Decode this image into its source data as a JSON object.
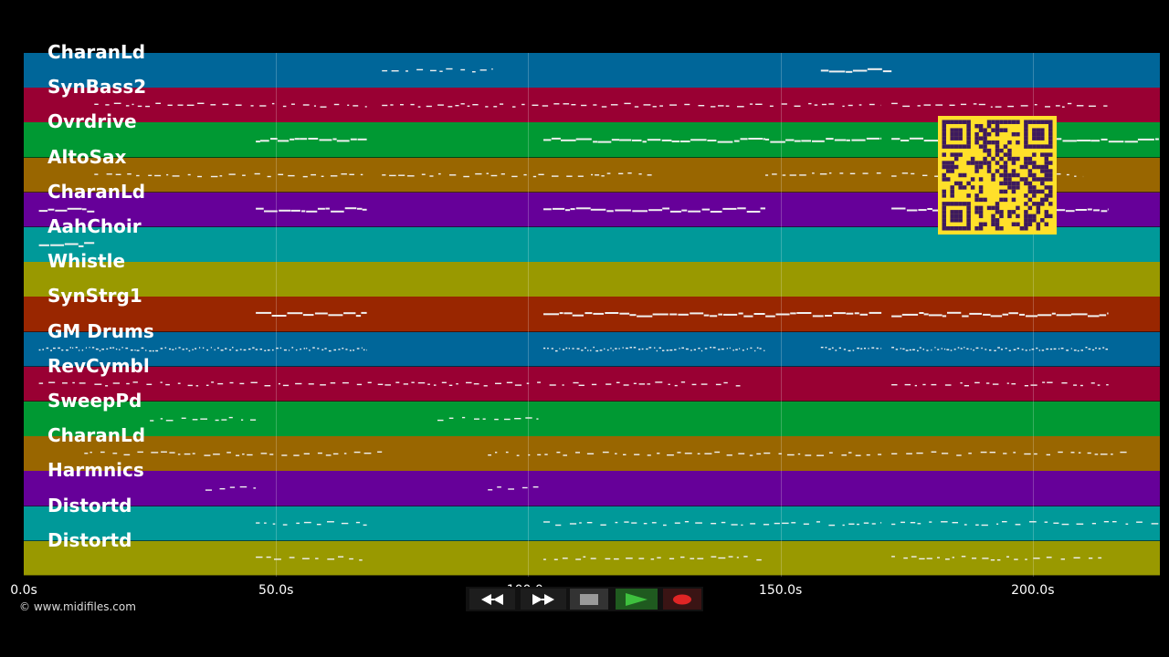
{
  "tracks": [
    {
      "name": "CharanLd",
      "color": "#006699"
    },
    {
      "name": "SynBass2",
      "color": "#990033"
    },
    {
      "name": "Ovrdrive",
      "color": "#009933"
    },
    {
      "name": "AltoSax",
      "color": "#996600"
    },
    {
      "name": "CharanLd",
      "color": "#660099"
    },
    {
      "name": "AahChoir",
      "color": "#009999"
    },
    {
      "name": "Whistle",
      "color": "#999900"
    },
    {
      "name": "SynStrg1",
      "color": "#992600"
    },
    {
      "name": "GM Drums",
      "color": "#006699"
    },
    {
      "name": "RevCymbl",
      "color": "#990033"
    },
    {
      "name": "SweepPd",
      "color": "#009933"
    },
    {
      "name": "CharanLd",
      "color": "#996600"
    },
    {
      "name": "Harmnics",
      "color": "#660099"
    },
    {
      "name": "Distortd",
      "color": "#009999"
    },
    {
      "name": "Distortd",
      "color": "#999900"
    }
  ],
  "timeline": {
    "max_seconds": 225,
    "ticks": [
      {
        "label": "0.0s",
        "value": 0
      },
      {
        "label": "50.0s",
        "value": 50
      },
      {
        "label": "100.0s",
        "value": 100
      },
      {
        "label": "150.0s",
        "value": 150
      },
      {
        "label": "200.0s",
        "value": 200
      }
    ]
  },
  "copyright": "© www.midifiles.com",
  "transport": {
    "rewind_icon": "rewind-icon",
    "fast_forward_icon": "fast-forward-icon",
    "stop_icon": "stop-icon",
    "play_icon": "play-icon",
    "record_icon": "record-icon"
  }
}
